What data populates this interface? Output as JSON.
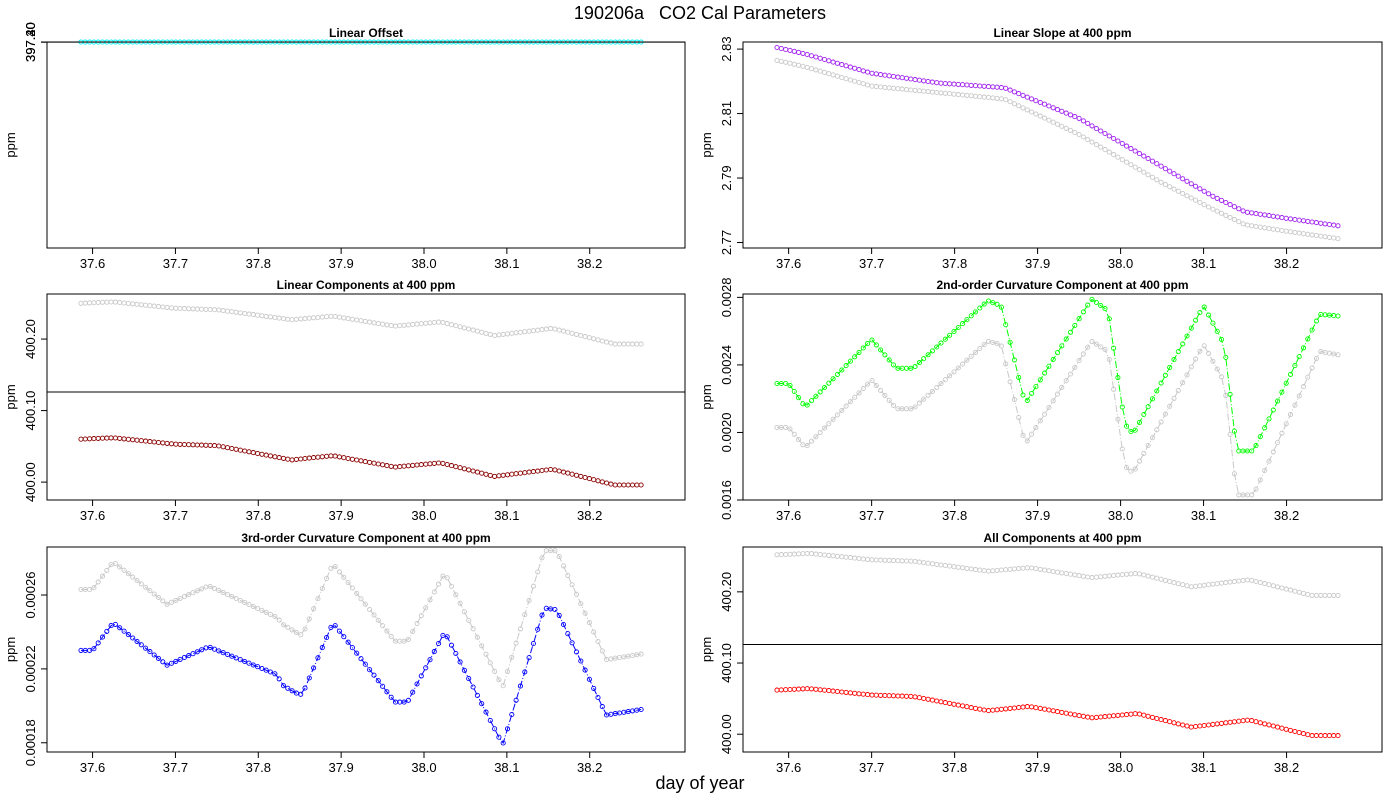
{
  "figure": {
    "title": "190206a   CO2 Cal Parameters",
    "xlabel": "day of year"
  },
  "chart_data": [
    {
      "type": "scatter",
      "title": "Linear Offset",
      "xlabel": "",
      "ylabel": "ppm",
      "xlim": [
        37.545,
        38.315
      ],
      "ylim": [
        37.195,
        397.457
      ],
      "yticks": [
        397.2,
        397.3,
        397.4
      ],
      "ytick_labels": [
        "397.20",
        "397.30",
        "397.40"
      ],
      "xticks": [
        37.6,
        37.7,
        37.8,
        37.9,
        38.0,
        38.1,
        38.2
      ],
      "xtick_labels": [
        "37.6",
        "37.7",
        "37.8",
        "37.9",
        "38.0",
        "38.1",
        "38.2"
      ],
      "hline": 397.316,
      "x_range": [
        37.586,
        38.262
      ],
      "series": [
        {
          "color": "#c8c8c8",
          "join_lines": false,
          "knots": [
            [
              37.586,
              397.441
            ],
            [
              37.625,
              397.446
            ],
            [
              37.7,
              397.436
            ],
            [
              37.75,
              397.435
            ],
            [
              37.84,
              397.419
            ],
            [
              37.89,
              397.43
            ],
            [
              37.965,
              397.413
            ],
            [
              38.02,
              397.431
            ],
            [
              38.085,
              397.419
            ],
            [
              38.155,
              397.44
            ],
            [
              38.23,
              397.417
            ],
            [
              38.262,
              397.417
            ]
          ]
        },
        {
          "color": "#00ffff",
          "join_lines": false,
          "knots": [
            [
              37.586,
              397.228
            ],
            [
              37.625,
              397.233
            ],
            [
              37.7,
              397.223
            ],
            [
              37.75,
              397.222
            ],
            [
              37.84,
              397.206
            ],
            [
              37.89,
              397.217
            ],
            [
              37.965,
              397.202
            ],
            [
              38.02,
              397.219
            ],
            [
              38.085,
              397.205
            ],
            [
              38.155,
              397.226
            ],
            [
              38.23,
              397.203
            ],
            [
              38.262,
              397.203
            ]
          ]
        }
      ]
    },
    {
      "type": "scatter",
      "title": "Linear Slope at 400 ppm",
      "xlabel": "",
      "ylabel": "ppm",
      "xlim": [
        37.545,
        38.315
      ],
      "ylim": [
        2.7683,
        2.8322
      ],
      "yticks": [
        2.77,
        2.79,
        2.81,
        2.83
      ],
      "ytick_labels": [
        "2.77",
        "2.79",
        "2.81",
        "2.83"
      ],
      "xticks": [
        37.6,
        37.7,
        37.8,
        37.9,
        38.0,
        38.1,
        38.2
      ],
      "xtick_labels": [
        "37.6",
        "37.7",
        "37.8",
        "37.9",
        "38.0",
        "38.1",
        "38.2"
      ],
      "hline": null,
      "x_range": [
        37.586,
        38.262
      ],
      "series": [
        {
          "color": "#c8c8c8",
          "join_lines": false,
          "knots": [
            [
              37.586,
              2.8265
            ],
            [
              37.62,
              2.8245
            ],
            [
              37.7,
              2.8185
            ],
            [
              37.78,
              2.8165
            ],
            [
              37.86,
              2.8145
            ],
            [
              37.95,
              2.8035
            ],
            [
              38.05,
              2.7885
            ],
            [
              38.11,
              2.7805
            ],
            [
              38.15,
              2.7755
            ],
            [
              38.2,
              2.7735
            ],
            [
              38.262,
              2.7712
            ]
          ]
        },
        {
          "color": "#a020f0",
          "join_lines": false,
          "knots": [
            [
              37.586,
              2.8305
            ],
            [
              37.62,
              2.8285
            ],
            [
              37.7,
              2.8225
            ],
            [
              37.78,
              2.8195
            ],
            [
              37.86,
              2.818
            ],
            [
              37.95,
              2.8085
            ],
            [
              38.05,
              2.7935
            ],
            [
              38.11,
              2.7845
            ],
            [
              38.15,
              2.7795
            ],
            [
              38.2,
              2.7775
            ],
            [
              38.262,
              2.7752
            ]
          ]
        }
      ]
    },
    {
      "type": "scatter",
      "title": "Linear Components at 400 ppm",
      "xlabel": "",
      "ylabel": "ppm",
      "xlim": [
        37.545,
        38.315
      ],
      "ylim": [
        399.975,
        400.263
      ],
      "yticks": [
        400.0,
        400.1,
        400.2
      ],
      "ytick_labels": [
        "400.00",
        "400.10",
        "400.20"
      ],
      "xticks": [
        37.6,
        37.7,
        37.8,
        37.9,
        38.0,
        38.1,
        38.2
      ],
      "xtick_labels": [
        "37.6",
        "37.7",
        "37.8",
        "37.9",
        "38.0",
        "38.1",
        "38.2"
      ],
      "hline": 400.126,
      "x_range": [
        37.586,
        38.262
      ],
      "series": [
        {
          "color": "#c8c8c8",
          "join_lines": false,
          "knots": [
            [
              37.586,
              400.25
            ],
            [
              37.625,
              400.252
            ],
            [
              37.7,
              400.243
            ],
            [
              37.75,
              400.241
            ],
            [
              37.84,
              400.227
            ],
            [
              37.89,
              400.232
            ],
            [
              37.965,
              400.218
            ],
            [
              38.02,
              400.224
            ],
            [
              38.085,
              400.205
            ],
            [
              38.155,
              400.215
            ],
            [
              38.23,
              400.193
            ],
            [
              38.262,
              400.193
            ]
          ]
        },
        {
          "color": "#8b0000",
          "join_lines": false,
          "knots": [
            [
              37.586,
              400.06
            ],
            [
              37.625,
              400.062
            ],
            [
              37.7,
              400.053
            ],
            [
              37.75,
              400.051
            ],
            [
              37.84,
              400.031
            ],
            [
              37.89,
              400.037
            ],
            [
              37.965,
              400.021
            ],
            [
              38.02,
              400.027
            ],
            [
              38.085,
              400.008
            ],
            [
              38.155,
              400.018
            ],
            [
              38.23,
              399.996
            ],
            [
              38.262,
              399.996
            ]
          ]
        }
      ]
    },
    {
      "type": "line",
      "title": "2nd-order Curvature Component at 400 ppm",
      "xlabel": "",
      "ylabel": "ppm",
      "xlim": [
        37.545,
        38.315
      ],
      "ylim": [
        0.0016,
        0.00282
      ],
      "yticks": [
        0.0016,
        0.002,
        0.0024,
        0.0028
      ],
      "ytick_labels": [
        "0.0016",
        "0.0020",
        "0.0024",
        "0.0028"
      ],
      "xticks": [
        37.6,
        37.7,
        37.8,
        37.9,
        38.0,
        38.1,
        38.2
      ],
      "xtick_labels": [
        "37.6",
        "37.7",
        "37.8",
        "37.9",
        "38.0",
        "38.1",
        "38.2"
      ],
      "hline": null,
      "x_range": [
        37.586,
        38.262
      ],
      "series": [
        {
          "color": "#c8c8c8",
          "join_lines": true,
          "knots": [
            [
              37.586,
              0.00203
            ],
            [
              37.6,
              0.00203
            ],
            [
              37.62,
              0.00191
            ],
            [
              37.7,
              0.00231
            ],
            [
              37.73,
              0.00214
            ],
            [
              37.75,
              0.00214
            ],
            [
              37.84,
              0.00254
            ],
            [
              37.856,
              0.00252
            ],
            [
              37.885,
              0.00193
            ],
            [
              37.965,
              0.00254
            ],
            [
              37.985,
              0.00248
            ],
            [
              38.005,
              0.0018
            ],
            [
              38.015,
              0.00176
            ],
            [
              38.1,
              0.00252
            ],
            [
              38.125,
              0.0023
            ],
            [
              38.14,
              0.00163
            ],
            [
              38.16,
              0.00163
            ],
            [
              38.24,
              0.00248
            ],
            [
              38.262,
              0.00246
            ]
          ]
        },
        {
          "color": "#00ff00",
          "join_lines": true,
          "knots": [
            [
              37.586,
              0.00229
            ],
            [
              37.6,
              0.00229
            ],
            [
              37.62,
              0.00215
            ],
            [
              37.7,
              0.00255
            ],
            [
              37.73,
              0.00238
            ],
            [
              37.75,
              0.00238
            ],
            [
              37.84,
              0.00278
            ],
            [
              37.856,
              0.00275
            ],
            [
              37.885,
              0.00217
            ],
            [
              37.965,
              0.00279
            ],
            [
              37.985,
              0.00272
            ],
            [
              38.005,
              0.00205
            ],
            [
              38.015,
              0.00199
            ],
            [
              38.1,
              0.00275
            ],
            [
              38.125,
              0.00252
            ],
            [
              38.14,
              0.00189
            ],
            [
              38.16,
              0.00189
            ],
            [
              38.24,
              0.0027
            ],
            [
              38.262,
              0.00269
            ]
          ]
        }
      ]
    },
    {
      "type": "line",
      "title": "3rd-order Curvature Component at 400 ppm",
      "xlabel": "",
      "ylabel": "ppm",
      "xlim": [
        37.545,
        38.315
      ],
      "ylim": [
        0.000175,
        0.000286
      ],
      "yticks": [
        0.00018,
        0.00022,
        0.00026
      ],
      "ytick_labels": [
        "0.00018",
        "0.00022",
        "0.00026"
      ],
      "xticks": [
        37.6,
        37.7,
        37.8,
        37.9,
        38.0,
        38.1,
        38.2
      ],
      "xtick_labels": [
        "37.6",
        "37.7",
        "37.8",
        "37.9",
        "38.0",
        "38.1",
        "38.2"
      ],
      "hline": null,
      "x_range": [
        37.586,
        38.262
      ],
      "series": [
        {
          "color": "#c8c8c8",
          "join_lines": true,
          "knots": [
            [
              37.586,
              0.000263
            ],
            [
              37.6,
              0.000263
            ],
            [
              37.625,
              0.000278
            ],
            [
              37.69,
              0.000255
            ],
            [
              37.74,
              0.000265
            ],
            [
              37.822,
              0.000248
            ],
            [
              37.83,
              0.000244
            ],
            [
              37.845,
              0.00024
            ],
            [
              37.853,
              0.000238
            ],
            [
              37.89,
              0.000277
            ],
            [
              37.965,
              0.000235
            ],
            [
              37.98,
              0.000235
            ],
            [
              38.025,
              0.000272
            ],
            [
              38.095,
              0.00021
            ],
            [
              38.145,
              0.000284
            ],
            [
              38.16,
              0.000284
            ],
            [
              38.22,
              0.000225
            ],
            [
              38.262,
              0.000228
            ]
          ]
        },
        {
          "color": "#0000ff",
          "join_lines": true,
          "knots": [
            [
              37.586,
              0.00023
            ],
            [
              37.6,
              0.00023
            ],
            [
              37.625,
              0.000245
            ],
            [
              37.69,
              0.000222
            ],
            [
              37.74,
              0.000232
            ],
            [
              37.822,
              0.000217
            ],
            [
              37.83,
              0.000211
            ],
            [
              37.845,
              0.000207
            ],
            [
              37.853,
              0.000206
            ],
            [
              37.89,
              0.000245
            ],
            [
              37.965,
              0.000202
            ],
            [
              37.98,
              0.000202
            ],
            [
              38.025,
              0.00024
            ],
            [
              38.095,
              0.000179
            ],
            [
              38.145,
              0.000253
            ],
            [
              38.16,
              0.000252
            ],
            [
              38.22,
              0.000195
            ],
            [
              38.262,
              0.000198
            ]
          ]
        }
      ]
    },
    {
      "type": "scatter",
      "title": "All Components at 400 ppm",
      "xlabel": "",
      "ylabel": "ppm",
      "xlim": [
        37.545,
        38.315
      ],
      "ylim": [
        399.975,
        400.263
      ],
      "yticks": [
        400.0,
        400.1,
        400.2
      ],
      "ytick_labels": [
        "400.00",
        "400.10",
        "400.20"
      ],
      "xticks": [
        37.6,
        37.7,
        37.8,
        37.9,
        38.0,
        38.1,
        38.2
      ],
      "xtick_labels": [
        "37.6",
        "37.7",
        "37.8",
        "37.9",
        "38.0",
        "38.1",
        "38.2"
      ],
      "hline": 400.126,
      "x_range": [
        37.586,
        38.262
      ],
      "series": [
        {
          "color": "#c8c8c8",
          "join_lines": false,
          "knots": [
            [
              37.586,
              400.252
            ],
            [
              37.625,
              400.254
            ],
            [
              37.7,
              400.245
            ],
            [
              37.75,
              400.243
            ],
            [
              37.84,
              400.229
            ],
            [
              37.89,
              400.234
            ],
            [
              37.965,
              400.22
            ],
            [
              38.02,
              400.226
            ],
            [
              38.085,
              400.207
            ],
            [
              38.155,
              400.217
            ],
            [
              38.23,
              400.195
            ],
            [
              38.262,
              400.195
            ]
          ]
        },
        {
          "color": "#ff0000",
          "join_lines": false,
          "knots": [
            [
              37.586,
              400.062
            ],
            [
              37.625,
              400.064
            ],
            [
              37.7,
              400.055
            ],
            [
              37.75,
              400.053
            ],
            [
              37.84,
              400.033
            ],
            [
              37.89,
              400.039
            ],
            [
              37.965,
              400.023
            ],
            [
              38.02,
              400.029
            ],
            [
              38.085,
              400.01
            ],
            [
              38.155,
              400.02
            ],
            [
              38.23,
              399.998
            ],
            [
              38.262,
              399.998
            ]
          ]
        }
      ]
    }
  ]
}
